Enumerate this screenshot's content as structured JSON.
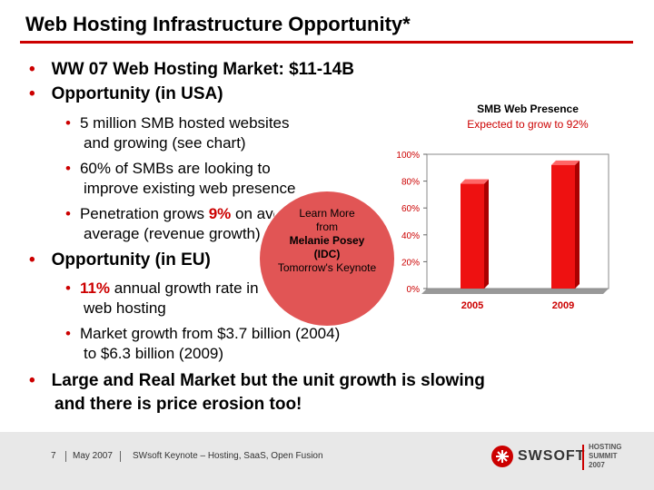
{
  "slide": {
    "title": "Web Hosting Infrastructure Opportunity*",
    "bullets": {
      "b1": "WW 07 Web Hosting Market: $11-14B",
      "b2": "Opportunity (in USA)",
      "b2_1_line1": "5 million SMB hosted websites",
      "b2_1_line2": "and growing (see chart)",
      "b2_2_line1": "60% of SMBs are looking to",
      "b2_2_line2": "improve existing web presence",
      "b2_3_pre": "Penetration grows ",
      "b2_3_highlight": "9%",
      "b2_3_post": " on average",
      "b2_3_line2": "average (revenue growth)",
      "b3": "Opportunity (in EU)",
      "b3_1_highlight": "11%",
      "b3_1_post": " annual growth rate in",
      "b3_1_line2": "web hosting",
      "b3_2_line1": "Market growth from $3.7 billion (2004)",
      "b3_2_line2": "to $6.3 billion (2009)",
      "b4_line1": "Large and Real Market but the unit growth is slowing",
      "b4_line2": "and there is price erosion too!"
    },
    "callout": {
      "line1": "Learn More",
      "line2": "from",
      "line3": "Melanie Posey",
      "line4": "(IDC)",
      "line5": "Tomorrow's Keynote"
    }
  },
  "chart_data": {
    "type": "bar",
    "title": "SMB Web Presence",
    "subtitle": "Expected to grow to 92%",
    "categories": [
      "2005",
      "2009"
    ],
    "values": [
      78,
      92
    ],
    "ylim": [
      0,
      100
    ],
    "yticks": [
      "0%",
      "20%",
      "40%",
      "60%",
      "80%",
      "100%"
    ],
    "color": "#ee1111"
  },
  "footer": {
    "page": "7",
    "date": "May 2007",
    "event": "SWsoft Keynote – Hosting, SaaS, Open Fusion",
    "brand": "SWSOFT",
    "summit_line1": "HOSTING",
    "summit_line2": "SUMMIT",
    "summit_line3": "2007",
    "accent": "#cc0000"
  }
}
